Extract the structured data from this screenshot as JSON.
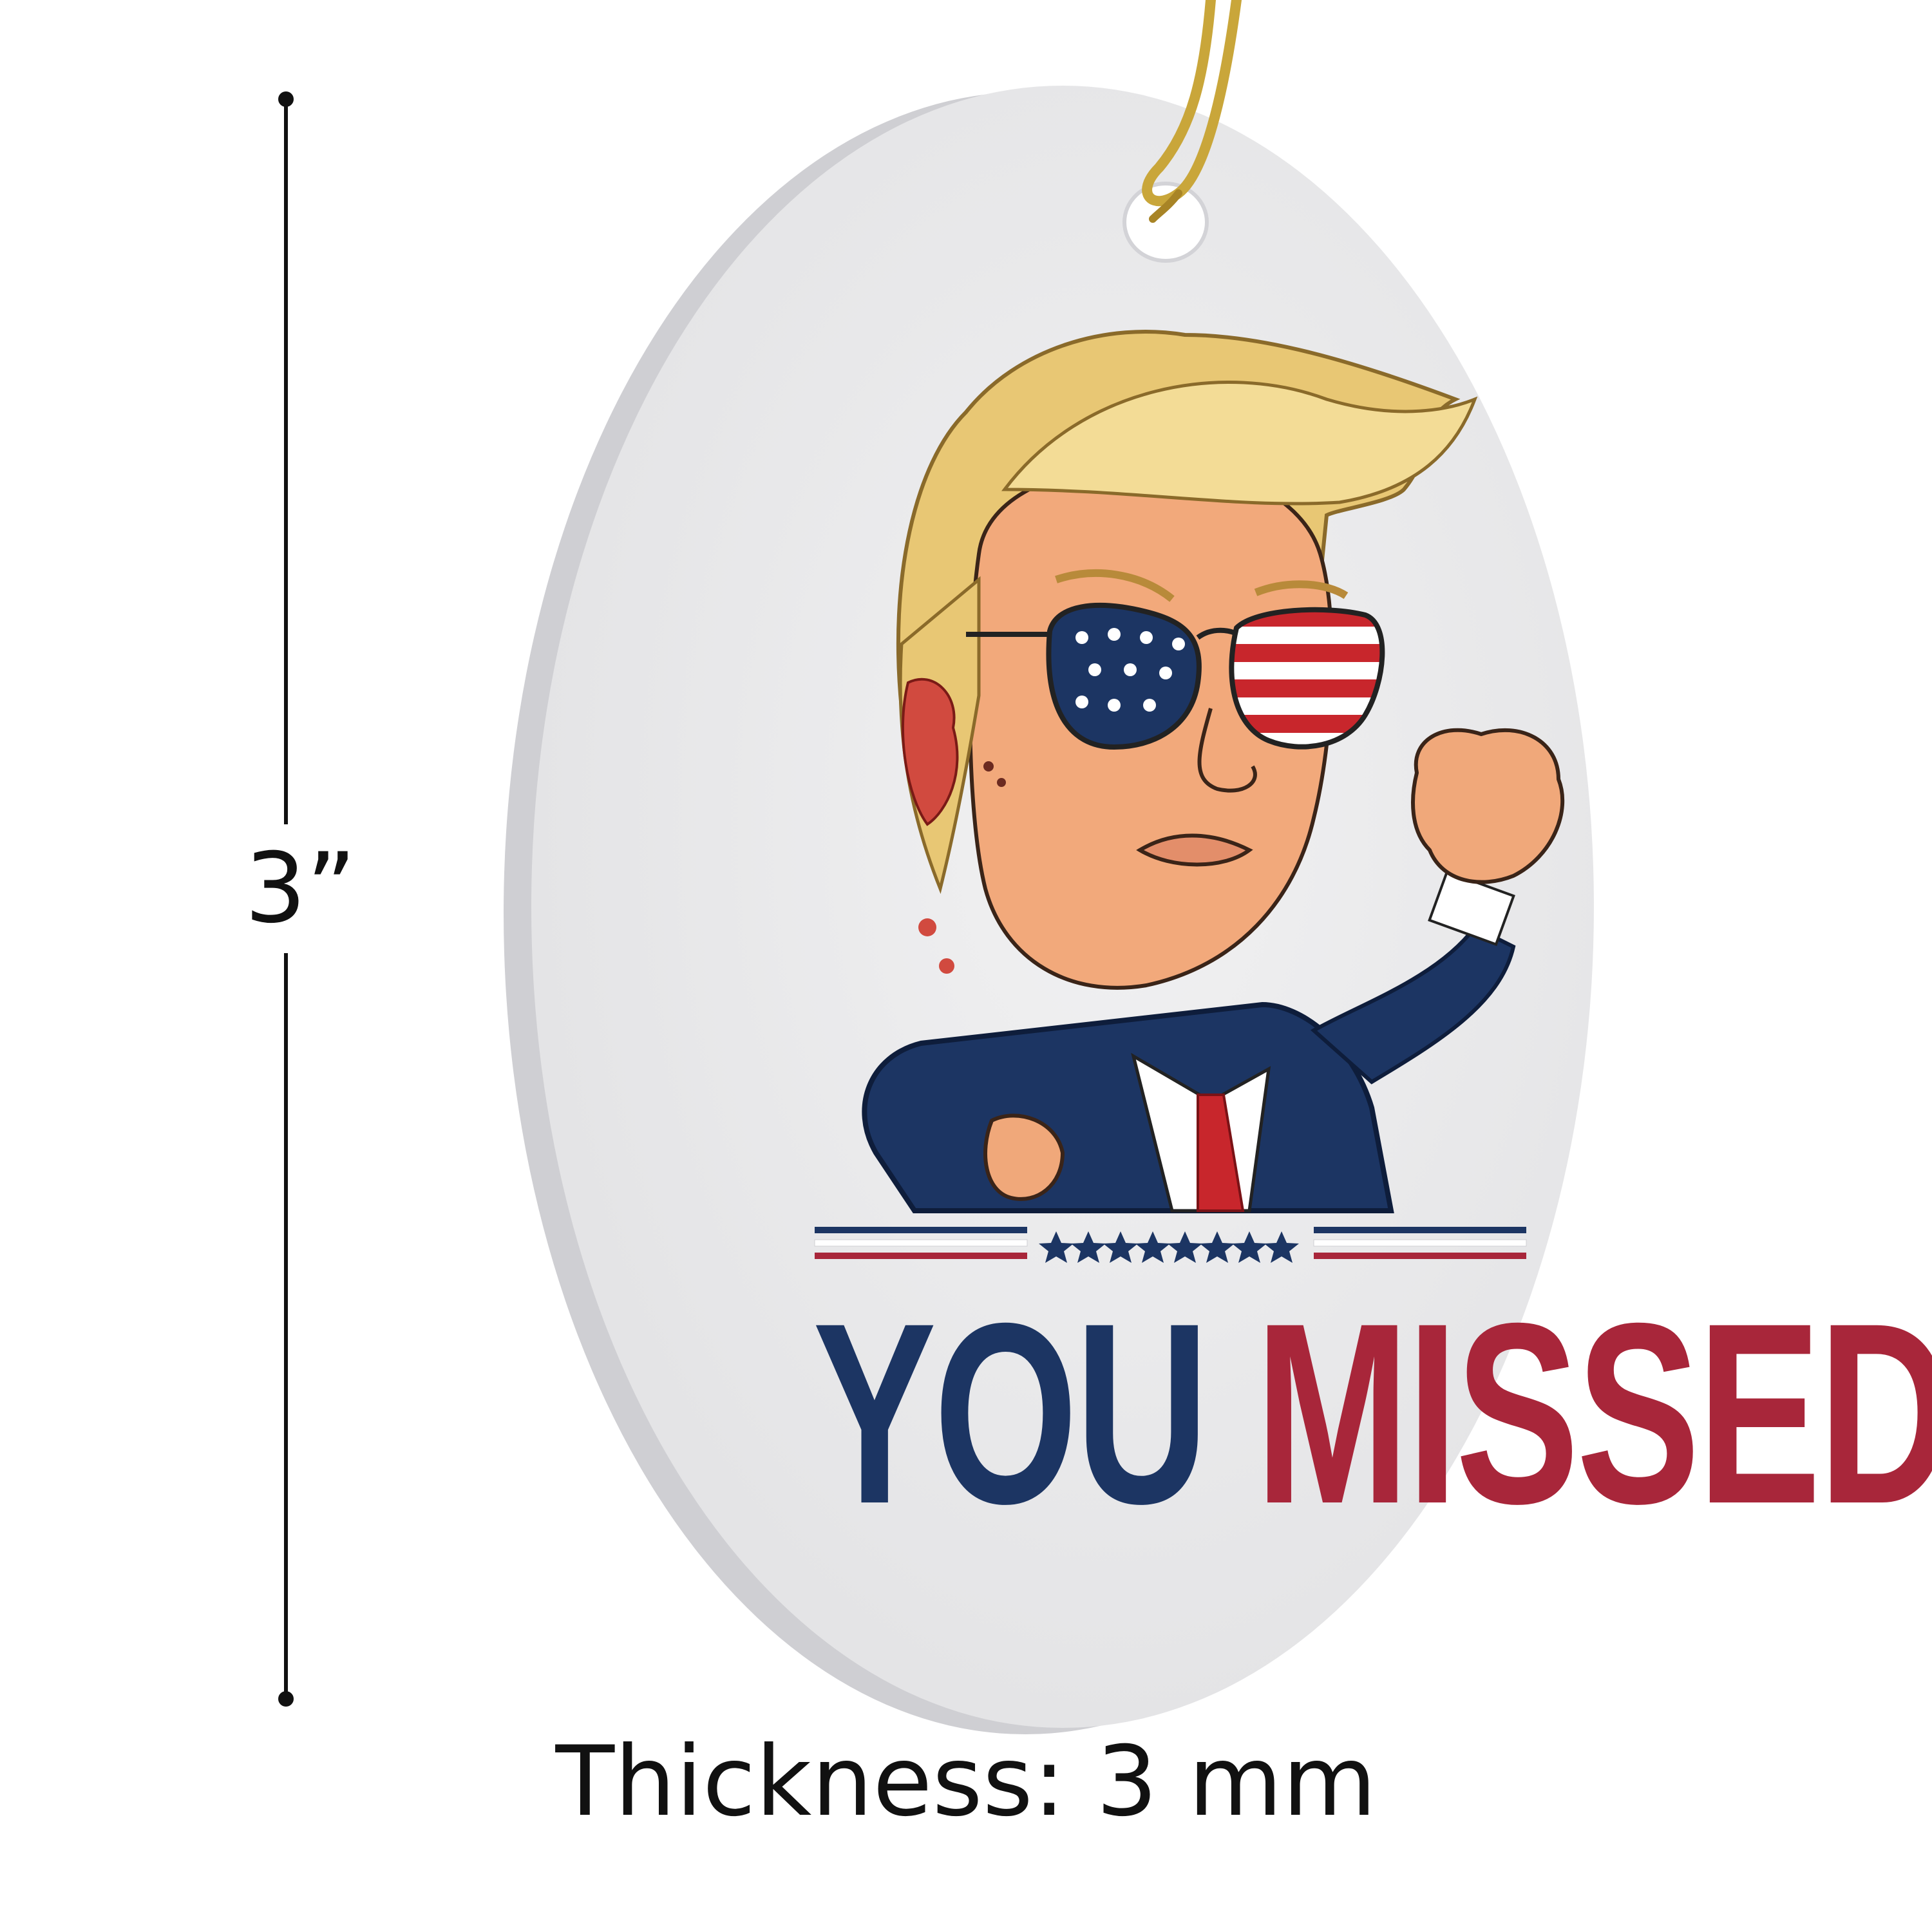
{
  "dimension": {
    "label": "3”"
  },
  "thickness": {
    "label": "Thickness: 3 mm"
  },
  "ornament": {
    "headline_word_1": "YOU",
    "headline_word_2": "MISSED",
    "colors": {
      "navy": "#1c3563",
      "red": "#a8263a",
      "ceramic": "#ededee",
      "cord": "#c9a63a"
    },
    "stars_count": 8
  }
}
